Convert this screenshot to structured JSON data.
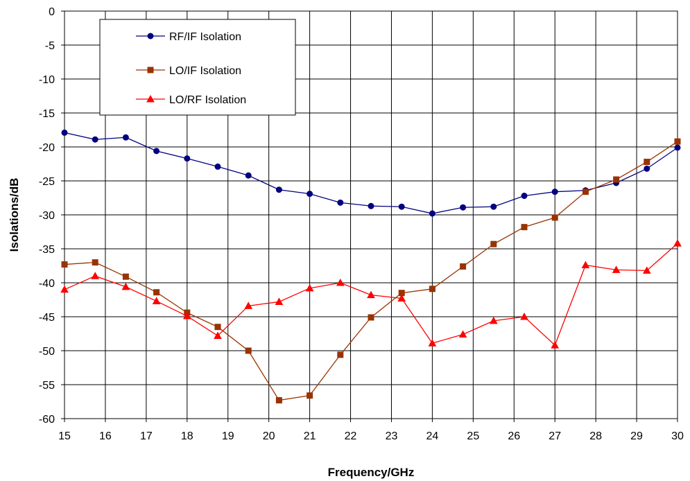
{
  "chart_data": {
    "type": "line",
    "title": "",
    "xlabel": "Frequency/GHz",
    "ylabel": "Isolations/dB",
    "xlim": [
      15,
      30
    ],
    "ylim": [
      -60,
      0
    ],
    "xticks": [
      15,
      16,
      17,
      18,
      19,
      20,
      21,
      22,
      23,
      24,
      25,
      26,
      27,
      28,
      29,
      30
    ],
    "yticks": [
      0,
      -5,
      -10,
      -15,
      -20,
      -25,
      -30,
      -35,
      -40,
      -45,
      -50,
      -55,
      -60
    ],
    "grid": true,
    "legend_position": "top-left",
    "x": [
      15,
      15.75,
      16.5,
      17.25,
      18,
      18.75,
      19.5,
      20.25,
      21,
      21.75,
      22.5,
      23.25,
      24,
      24.75,
      25.5,
      26.25,
      27,
      27.75,
      28.5,
      29.25,
      30
    ],
    "series": [
      {
        "name": "RF/IF Isolation",
        "color": "#000080",
        "marker": "circle",
        "values": [
          -17.9,
          -18.9,
          -18.6,
          -20.6,
          -21.7,
          -22.9,
          -24.2,
          -26.3,
          -26.9,
          -28.2,
          -28.7,
          -28.8,
          -29.8,
          -28.9,
          -28.8,
          -27.2,
          -26.6,
          -26.4,
          -25.3,
          -23.2,
          -20.1
        ]
      },
      {
        "name": "LO/IF Isolation",
        "color": "#993300",
        "marker": "square",
        "values": [
          -37.3,
          -37.0,
          -39.1,
          -41.4,
          -44.4,
          -46.5,
          -50.0,
          -57.3,
          -56.6,
          -50.6,
          -45.1,
          -41.5,
          -40.9,
          -37.6,
          -34.3,
          -31.8,
          -30.4,
          -26.6,
          -24.8,
          -22.2,
          -19.2
        ]
      },
      {
        "name": "LO/RF Isolation",
        "color": "#ff0000",
        "marker": "triangle",
        "values": [
          -41.0,
          -39.0,
          -40.6,
          -42.7,
          -44.9,
          -47.8,
          -43.4,
          -42.8,
          -40.8,
          -40.0,
          -41.8,
          -42.3,
          -48.9,
          -47.6,
          -45.6,
          -45.0,
          -49.2,
          -37.4,
          -38.1,
          -38.2,
          -34.2
        ]
      }
    ]
  }
}
